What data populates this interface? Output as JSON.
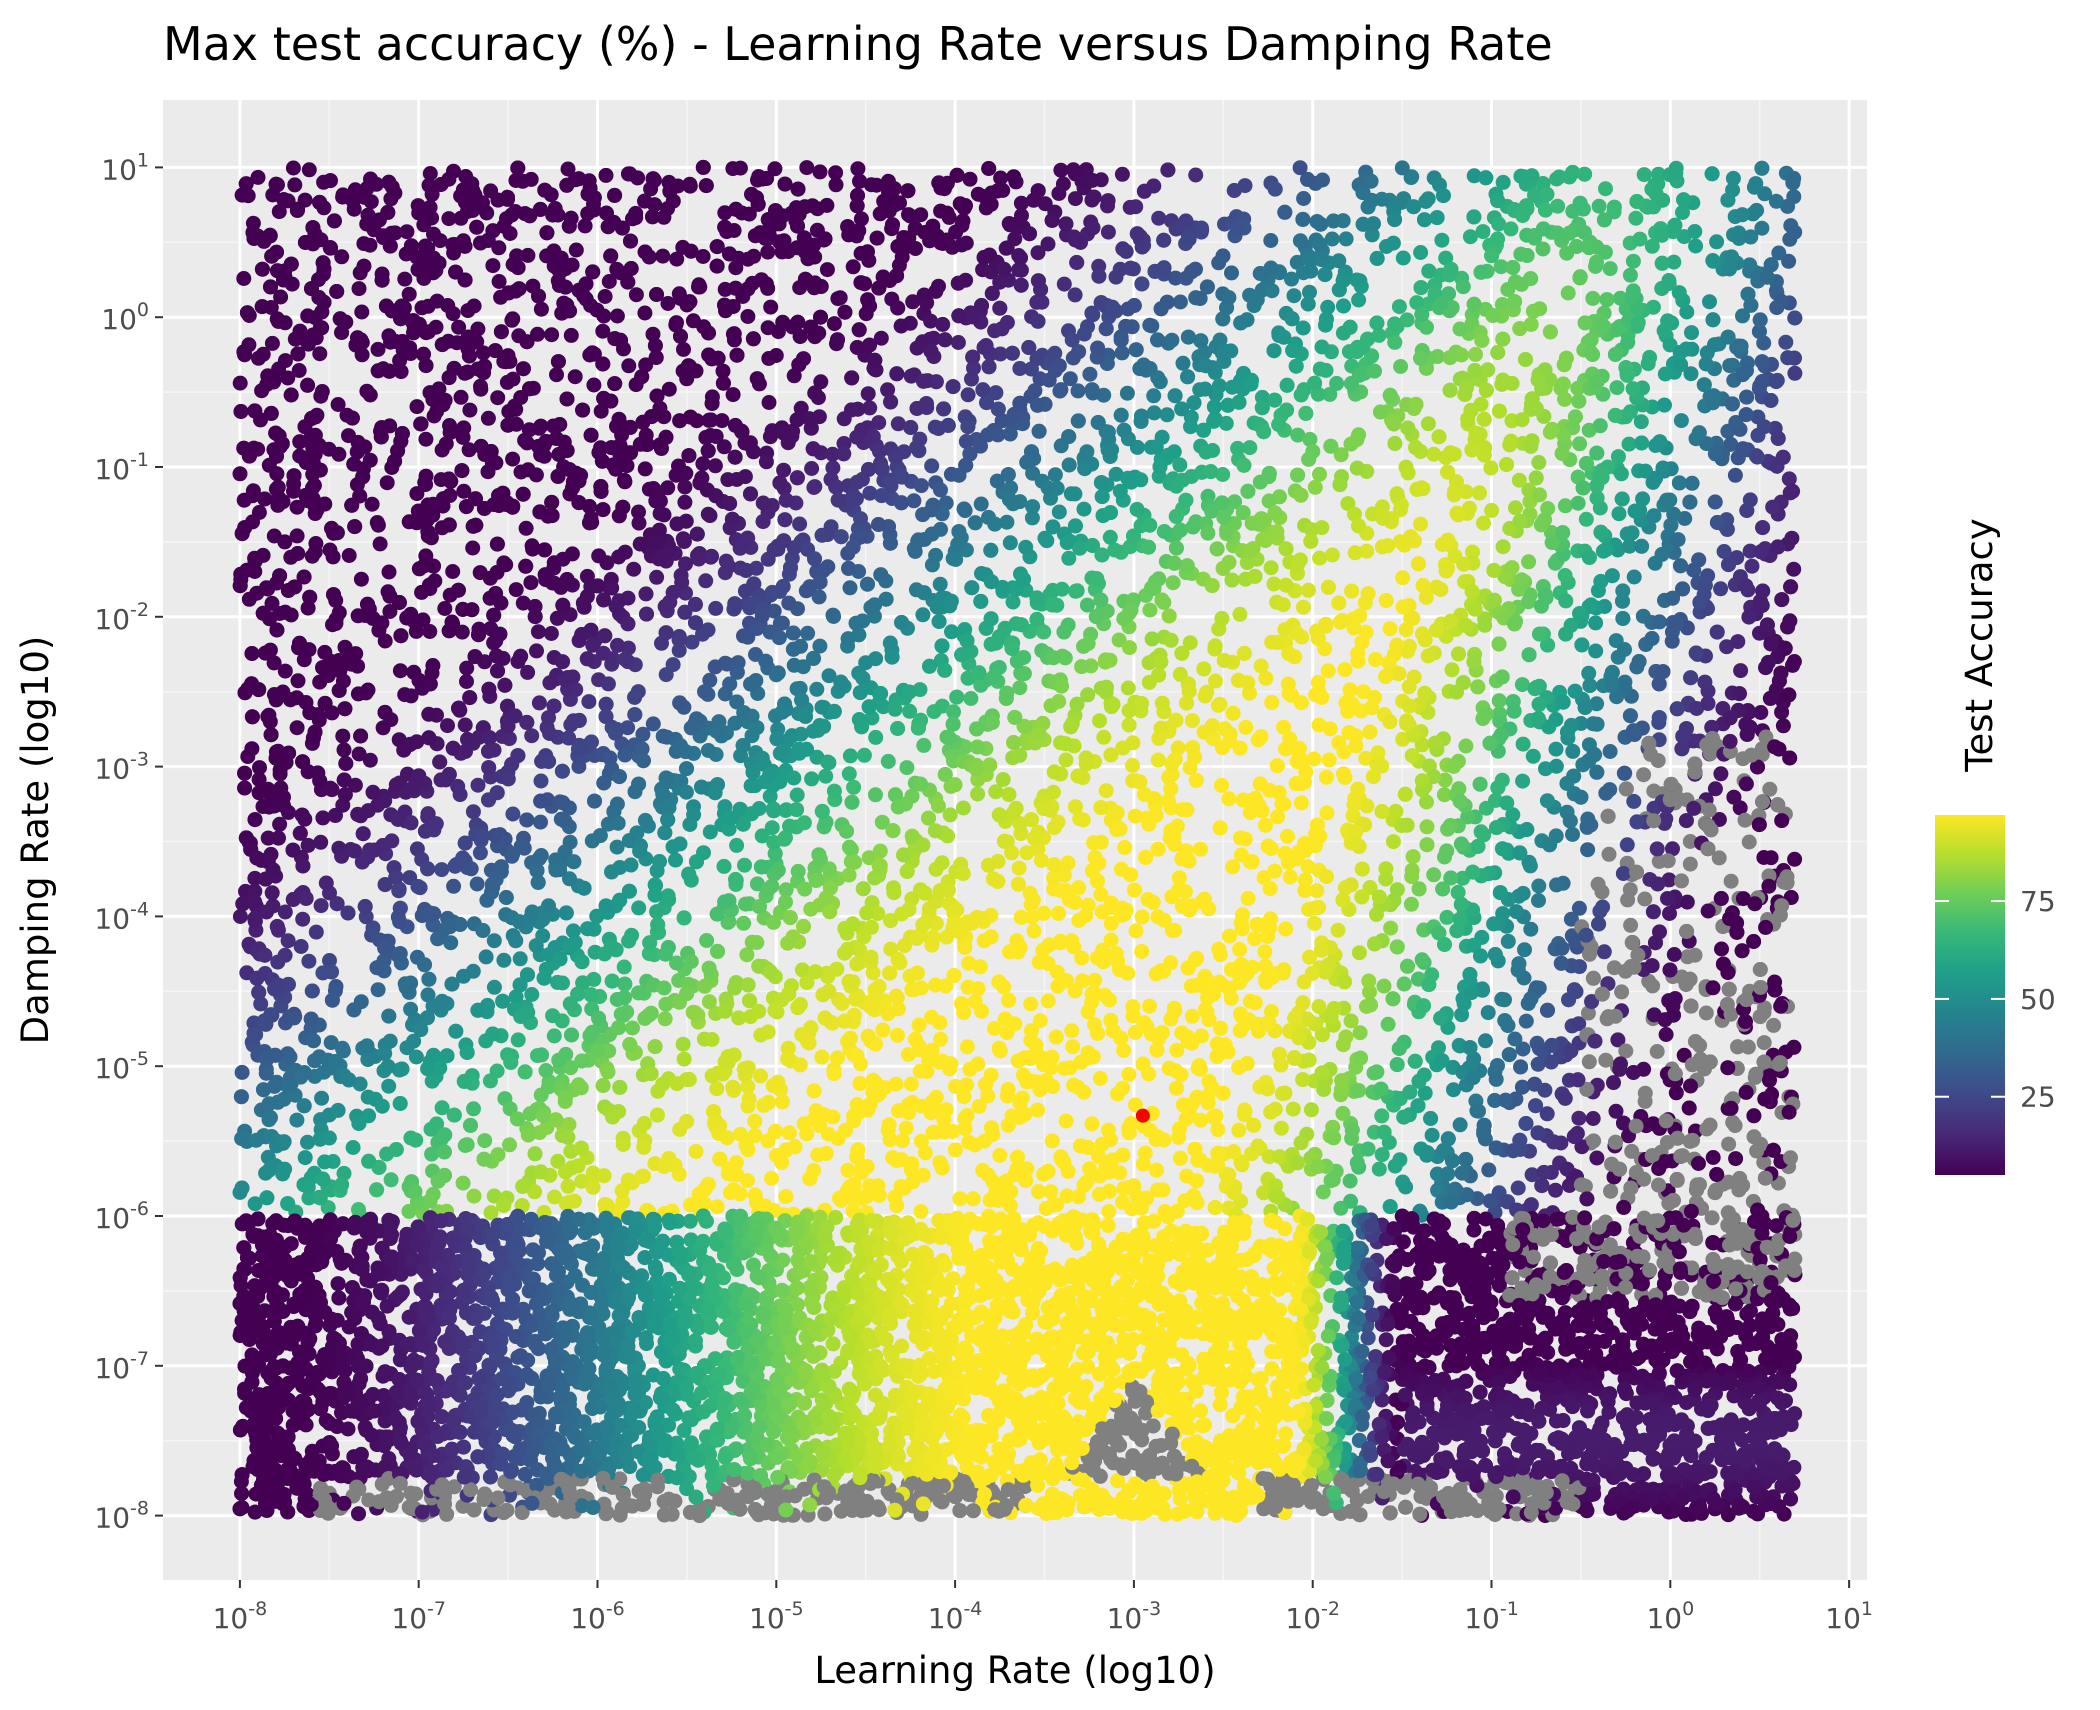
{
  "chart_data": {
    "type": "scatter",
    "title": "Max test accuracy (%) - Learning Rate versus Damping Rate",
    "xlabel": "Learning Rate (log10)",
    "ylabel": "Damping Rate (log10)",
    "x_scale": "log10",
    "y_scale": "log10",
    "xlim_log10": [
      -8.43,
      1.1
    ],
    "ylim_log10": [
      -8.43,
      1.45
    ],
    "x_ticks": [
      {
        "base": "10",
        "exp": "-8",
        "log10": -8
      },
      {
        "base": "10",
        "exp": "-7",
        "log10": -7
      },
      {
        "base": "10",
        "exp": "-6",
        "log10": -6
      },
      {
        "base": "10",
        "exp": "-5",
        "log10": -5
      },
      {
        "base": "10",
        "exp": "-4",
        "log10": -4
      },
      {
        "base": "10",
        "exp": "-3",
        "log10": -3
      },
      {
        "base": "10",
        "exp": "-2",
        "log10": -2
      },
      {
        "base": "10",
        "exp": "-1",
        "log10": -1
      },
      {
        "base": "10",
        "exp": "0",
        "log10": 0
      },
      {
        "base": "10",
        "exp": "1",
        "log10": 1
      }
    ],
    "y_ticks": [
      {
        "base": "10",
        "exp": "-8",
        "log10": -8
      },
      {
        "base": "10",
        "exp": "-7",
        "log10": -7
      },
      {
        "base": "10",
        "exp": "-6",
        "log10": -6
      },
      {
        "base": "10",
        "exp": "-5",
        "log10": -5
      },
      {
        "base": "10",
        "exp": "-4",
        "log10": -4
      },
      {
        "base": "10",
        "exp": "-3",
        "log10": -3
      },
      {
        "base": "10",
        "exp": "-2",
        "log10": -2
      },
      {
        "base": "10",
        "exp": "-1",
        "log10": -1
      },
      {
        "base": "10",
        "exp": "0",
        "log10": 0
      },
      {
        "base": "10",
        "exp": "1",
        "log10": 1
      }
    ],
    "color_scale": {
      "title": "Test Accuracy",
      "palette": "viridis",
      "min": 5,
      "max": 97,
      "ticks": [
        {
          "label": "25",
          "value": 25
        },
        {
          "label": "50",
          "value": 50
        },
        {
          "label": "75",
          "value": 75
        }
      ],
      "na_color": "#808080"
    },
    "point_sampling": {
      "x_log10_range": [
        -8,
        0.7
      ],
      "y_log10_range": [
        -8,
        1
      ],
      "upper_region_points": 9000,
      "lower_band_points": 9000,
      "lower_band_y_log10_top": -6
    },
    "highlight_point": {
      "x_log10": -2.95,
      "y_log10": -5.33,
      "color": "#ff0000"
    },
    "colors": {
      "panel_background": "#ebebeb",
      "grid_major": "#ffffff",
      "grid_minor": "#f5f5f5"
    }
  }
}
